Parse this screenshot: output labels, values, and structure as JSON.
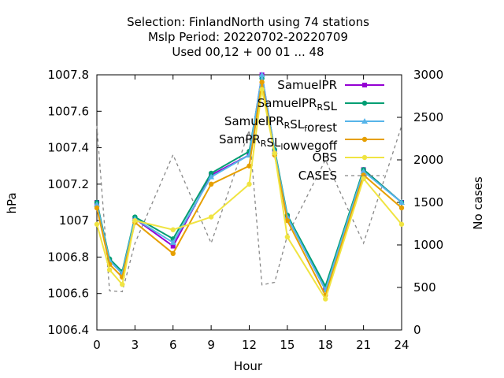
{
  "chart_data": {
    "type": "line",
    "title_lines": [
      "Selection: FinlandNorth using    74 stations",
      "Mslp   Period: 20220702-20220709",
      "Used  00,12  + 00 01 ... 48"
    ],
    "xlabel": "Hour",
    "ylabel": "hPa",
    "y2label": "No cases",
    "xlim": [
      0,
      24
    ],
    "ylim": [
      1006.4,
      1007.8
    ],
    "y2lim": [
      0,
      3000
    ],
    "xticks": [
      "0",
      "3",
      "6",
      "9",
      "12",
      "15",
      "18",
      "21",
      "24"
    ],
    "yticks": [
      "1006.4",
      "1006.6",
      "1006.8",
      "1007",
      "1007.2",
      "1007.4",
      "1007.6",
      "1007.8"
    ],
    "y2ticks": [
      "0",
      "500",
      "1000",
      "1500",
      "2000",
      "2500",
      "3000"
    ],
    "legend_position": "top-right",
    "x": [
      0,
      1,
      2,
      3,
      6,
      9,
      12,
      13,
      14,
      15,
      18,
      21,
      24
    ],
    "series": [
      {
        "name": "SamuelPR",
        "name_parts": [
          [
            "SamuelPR",
            ""
          ]
        ],
        "color": "#9400d3",
        "marker": "square",
        "style": "solid",
        "values": [
          1007.1,
          1006.78,
          1006.71,
          1007.01,
          1006.86,
          1007.25,
          1007.36,
          1007.8,
          1007.38,
          1007.02,
          1006.62,
          1007.28,
          1007.1
        ]
      },
      {
        "name": "SamuelPR_RSL",
        "name_parts": [
          [
            "SamuelPR",
            ""
          ],
          [
            "R",
            "sub"
          ],
          [
            "SL",
            ""
          ]
        ],
        "color": "#009e73",
        "marker": "circle",
        "style": "solid",
        "values": [
          1007.1,
          1006.79,
          1006.72,
          1007.02,
          1006.9,
          1007.26,
          1007.38,
          1007.78,
          1007.39,
          1007.03,
          1006.64,
          1007.28,
          1007.1
        ]
      },
      {
        "name": "SamuelPR_RSL_forest",
        "name_parts": [
          [
            "SamuelPR",
            ""
          ],
          [
            "R",
            "sub"
          ],
          [
            "SL",
            ""
          ],
          [
            "f",
            "sub"
          ],
          [
            "orest",
            ""
          ]
        ],
        "color": "#56b4e9",
        "marker": "triangle",
        "style": "solid",
        "values": [
          1007.09,
          1006.78,
          1006.71,
          1007.01,
          1006.88,
          1007.24,
          1007.36,
          1007.8,
          1007.38,
          1007.02,
          1006.62,
          1007.27,
          1007.1
        ]
      },
      {
        "name": "SamPR_RSL_lowvegoff",
        "name_parts": [
          [
            "SamPR",
            ""
          ],
          [
            "R",
            "sub"
          ],
          [
            "SL",
            ""
          ],
          [
            "l",
            "sub"
          ],
          [
            "owvegoff",
            ""
          ]
        ],
        "color": "#e69f00",
        "marker": "circle",
        "style": "solid",
        "values": [
          1007.07,
          1006.76,
          1006.69,
          1006.99,
          1006.82,
          1007.2,
          1007.3,
          1007.76,
          1007.36,
          1007.0,
          1006.59,
          1007.25,
          1007.07
        ]
      },
      {
        "name": "OBS",
        "name_parts": [
          [
            "OBS",
            ""
          ]
        ],
        "color": "#f0e442",
        "marker": "circle",
        "style": "solid",
        "values": [
          1006.98,
          1006.73,
          1006.65,
          1007.0,
          1006.95,
          1007.02,
          1007.2,
          1007.72,
          1007.37,
          1006.91,
          1006.57,
          1007.23,
          1006.98
        ]
      }
    ],
    "cases": {
      "name": "CASES",
      "color": "#888888",
      "style": "dashed",
      "axis": "y2",
      "x": [
        0,
        1,
        2,
        3,
        6,
        9,
        12,
        13,
        14,
        15,
        18,
        21,
        24
      ],
      "values": [
        2400,
        460,
        450,
        1020,
        2060,
        1020,
        2350,
        530,
        560,
        1110,
        2000,
        1020,
        2400
      ]
    }
  }
}
